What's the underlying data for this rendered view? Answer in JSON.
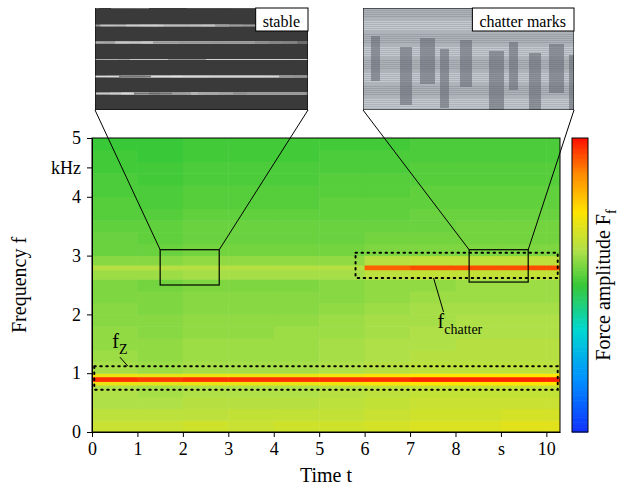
{
  "chart_data": {
    "type": "heatmap",
    "x_label": "Time t",
    "y_label": "Frequency f",
    "colorbar_label": {
      "text": "Force amplitude F",
      "subscript": "f"
    },
    "xlim": [
      0,
      10.3
    ],
    "ylim": [
      0,
      5
    ],
    "xticks": [
      0,
      1,
      2,
      3,
      4,
      5,
      6,
      7,
      8,
      {
        "value": 9,
        "label": "s"
      },
      10
    ],
    "yticks": [
      0,
      1,
      2,
      3,
      4,
      {
        "value": 4.5,
        "label": "kHz"
      },
      5
    ],
    "x_edges": [
      0,
      1,
      2,
      3,
      4,
      5,
      6,
      7,
      8,
      9,
      10,
      10.3
    ],
    "y_edges": [
      0,
      0.2,
      0.4,
      0.6,
      0.8,
      0.86,
      0.94,
      1.0,
      1.2,
      1.4,
      1.6,
      1.8,
      2.0,
      2.2,
      2.4,
      2.6,
      2.76,
      2.84,
      3.0,
      3.2,
      3.4,
      3.6,
      3.8,
      4.0,
      4.2,
      4.4,
      4.6,
      4.8,
      5.0
    ],
    "color_range": [
      0,
      1
    ],
    "cells": [
      [
        0.66,
        0.66,
        0.67,
        0.66,
        0.67,
        0.67,
        0.68,
        0.69,
        0.69,
        0.7,
        0.7
      ],
      [
        0.64,
        0.64,
        0.64,
        0.65,
        0.65,
        0.65,
        0.66,
        0.67,
        0.67,
        0.68,
        0.68
      ],
      [
        0.62,
        0.62,
        0.63,
        0.63,
        0.63,
        0.64,
        0.65,
        0.66,
        0.66,
        0.66,
        0.66
      ],
      [
        0.62,
        0.61,
        0.62,
        0.62,
        0.62,
        0.63,
        0.64,
        0.65,
        0.65,
        0.65,
        0.65
      ],
      [
        0.72,
        0.71,
        0.72,
        0.72,
        0.72,
        0.73,
        0.74,
        0.75,
        0.75,
        0.75,
        0.75
      ],
      [
        0.97,
        0.96,
        0.97,
        0.97,
        0.97,
        0.97,
        0.97,
        0.98,
        0.98,
        0.98,
        0.98
      ],
      [
        0.72,
        0.71,
        0.72,
        0.72,
        0.72,
        0.73,
        0.74,
        0.75,
        0.75,
        0.75,
        0.75
      ],
      [
        0.61,
        0.6,
        0.61,
        0.61,
        0.61,
        0.62,
        0.63,
        0.64,
        0.64,
        0.64,
        0.64
      ],
      [
        0.6,
        0.59,
        0.6,
        0.6,
        0.6,
        0.61,
        0.62,
        0.63,
        0.63,
        0.63,
        0.63
      ],
      [
        0.59,
        0.59,
        0.6,
        0.6,
        0.6,
        0.61,
        0.62,
        0.62,
        0.63,
        0.63,
        0.63
      ],
      [
        0.59,
        0.58,
        0.59,
        0.59,
        0.6,
        0.6,
        0.61,
        0.62,
        0.62,
        0.62,
        0.62
      ],
      [
        0.58,
        0.58,
        0.59,
        0.59,
        0.59,
        0.6,
        0.61,
        0.61,
        0.62,
        0.62,
        0.62
      ],
      [
        0.58,
        0.57,
        0.58,
        0.58,
        0.58,
        0.59,
        0.6,
        0.61,
        0.61,
        0.61,
        0.61
      ],
      [
        0.57,
        0.57,
        0.58,
        0.58,
        0.58,
        0.58,
        0.59,
        0.6,
        0.6,
        0.6,
        0.6
      ],
      [
        0.57,
        0.56,
        0.57,
        0.57,
        0.57,
        0.58,
        0.59,
        0.59,
        0.6,
        0.6,
        0.6
      ],
      [
        0.6,
        0.6,
        0.61,
        0.61,
        0.61,
        0.61,
        0.64,
        0.65,
        0.65,
        0.65,
        0.65
      ],
      [
        0.63,
        0.63,
        0.63,
        0.63,
        0.63,
        0.63,
        0.92,
        0.94,
        0.94,
        0.94,
        0.94
      ],
      [
        0.58,
        0.58,
        0.59,
        0.59,
        0.59,
        0.59,
        0.63,
        0.64,
        0.64,
        0.64,
        0.64
      ],
      [
        0.55,
        0.55,
        0.56,
        0.56,
        0.56,
        0.56,
        0.57,
        0.57,
        0.57,
        0.57,
        0.57
      ],
      [
        0.55,
        0.54,
        0.55,
        0.55,
        0.55,
        0.55,
        0.56,
        0.56,
        0.56,
        0.56,
        0.56
      ],
      [
        0.54,
        0.54,
        0.55,
        0.55,
        0.55,
        0.55,
        0.55,
        0.55,
        0.56,
        0.56,
        0.56
      ],
      [
        0.53,
        0.53,
        0.54,
        0.54,
        0.54,
        0.54,
        0.54,
        0.55,
        0.55,
        0.55,
        0.55
      ],
      [
        0.53,
        0.52,
        0.53,
        0.53,
        0.53,
        0.54,
        0.54,
        0.54,
        0.54,
        0.54,
        0.54
      ],
      [
        0.52,
        0.52,
        0.53,
        0.53,
        0.53,
        0.53,
        0.53,
        0.54,
        0.54,
        0.54,
        0.54
      ],
      [
        0.52,
        0.51,
        0.52,
        0.52,
        0.52,
        0.53,
        0.53,
        0.53,
        0.53,
        0.53,
        0.53
      ],
      [
        0.51,
        0.51,
        0.52,
        0.52,
        0.52,
        0.52,
        0.52,
        0.53,
        0.53,
        0.53,
        0.53
      ],
      [
        0.51,
        0.5,
        0.51,
        0.51,
        0.51,
        0.52,
        0.52,
        0.52,
        0.52,
        0.52,
        0.52
      ],
      [
        0.5,
        0.5,
        0.51,
        0.51,
        0.51,
        0.51,
        0.51,
        0.52,
        0.52,
        0.52,
        0.52
      ]
    ],
    "annotations": [
      {
        "label": {
          "text": "f",
          "subscript": "Z"
        },
        "box_x": [
          0.05,
          10.25
        ],
        "box_y": [
          0.72,
          1.12
        ]
      },
      {
        "label": {
          "text": "f",
          "subscript": "chatter"
        },
        "box_x": [
          5.8,
          10.25
        ],
        "box_y": [
          2.62,
          3.05
        ]
      }
    ],
    "insets": [
      {
        "label": "stable",
        "x": [
          1.5,
          2.8
        ],
        "y": [
          2.5,
          3.1
        ]
      },
      {
        "label": "chatter marks",
        "x": [
          8.3,
          9.6
        ],
        "y": [
          2.55,
          3.1
        ]
      }
    ]
  }
}
